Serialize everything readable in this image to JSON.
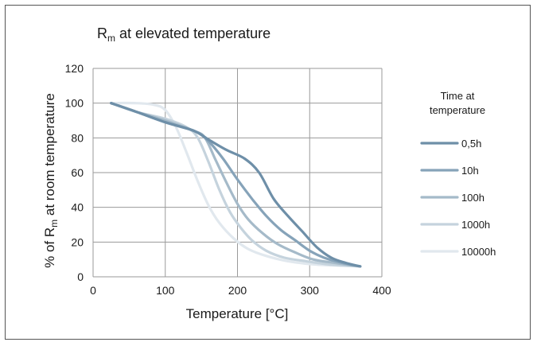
{
  "chart_data": {
    "type": "line",
    "title": {
      "main": "R",
      "sub": "m",
      "rest": " at elevated temperature"
    },
    "xlabel": "Temperature [°C]",
    "ylabel": {
      "pre": "% of R",
      "sub": "m",
      "post": " at room temperature"
    },
    "xlim": [
      0,
      400
    ],
    "ylim": [
      0,
      120
    ],
    "xticks": [
      0,
      100,
      200,
      300,
      400
    ],
    "yticks": [
      0,
      20,
      40,
      60,
      80,
      100,
      120
    ],
    "grid": true,
    "legend_title": [
      "Time at",
      "temperature"
    ],
    "legend_position": "right",
    "series": [
      {
        "name": "0,5h",
        "color": "#6e8fa8",
        "points": [
          [
            25,
            100
          ],
          [
            60,
            95
          ],
          [
            100,
            89
          ],
          [
            140,
            84
          ],
          [
            160,
            79
          ],
          [
            185,
            73
          ],
          [
            210,
            68
          ],
          [
            230,
            60
          ],
          [
            250,
            45
          ],
          [
            270,
            35
          ],
          [
            290,
            26
          ],
          [
            310,
            17
          ],
          [
            330,
            11
          ],
          [
            350,
            8
          ],
          [
            370,
            6
          ]
        ]
      },
      {
        "name": "10h",
        "color": "#86a3b9",
        "points": [
          [
            25,
            100
          ],
          [
            60,
            95
          ],
          [
            100,
            89
          ],
          [
            140,
            84
          ],
          [
            160,
            78
          ],
          [
            180,
            68
          ],
          [
            200,
            56
          ],
          [
            220,
            45
          ],
          [
            240,
            35
          ],
          [
            260,
            27
          ],
          [
            280,
            21
          ],
          [
            300,
            15
          ],
          [
            320,
            11
          ],
          [
            345,
            8
          ],
          [
            370,
            6
          ]
        ]
      },
      {
        "name": "100h",
        "color": "#a5bac9",
        "points": [
          [
            25,
            100
          ],
          [
            60,
            95
          ],
          [
            100,
            90
          ],
          [
            140,
            84
          ],
          [
            155,
            80
          ],
          [
            170,
            67
          ],
          [
            185,
            54
          ],
          [
            200,
            42
          ],
          [
            215,
            33
          ],
          [
            235,
            25
          ],
          [
            255,
            19
          ],
          [
            280,
            14
          ],
          [
            305,
            10
          ],
          [
            335,
            8
          ],
          [
            370,
            6
          ]
        ]
      },
      {
        "name": "1000h",
        "color": "#c5d3dd",
        "points": [
          [
            25,
            100
          ],
          [
            60,
            95
          ],
          [
            100,
            91
          ],
          [
            130,
            86
          ],
          [
            145,
            80
          ],
          [
            160,
            66
          ],
          [
            175,
            50
          ],
          [
            190,
            37
          ],
          [
            205,
            28
          ],
          [
            220,
            21
          ],
          [
            240,
            15
          ],
          [
            265,
            11
          ],
          [
            295,
            9
          ],
          [
            330,
            7
          ],
          [
            370,
            6
          ]
        ]
      },
      {
        "name": "10000h",
        "color": "#e1e8ee",
        "points": [
          [
            25,
            100
          ],
          [
            60,
            100
          ],
          [
            85,
            99
          ],
          [
            100,
            96
          ],
          [
            115,
            86
          ],
          [
            130,
            71
          ],
          [
            145,
            55
          ],
          [
            160,
            41
          ],
          [
            175,
            31
          ],
          [
            195,
            22
          ],
          [
            215,
            16
          ],
          [
            240,
            12
          ],
          [
            270,
            9
          ],
          [
            310,
            7
          ],
          [
            370,
            6
          ]
        ]
      }
    ]
  }
}
